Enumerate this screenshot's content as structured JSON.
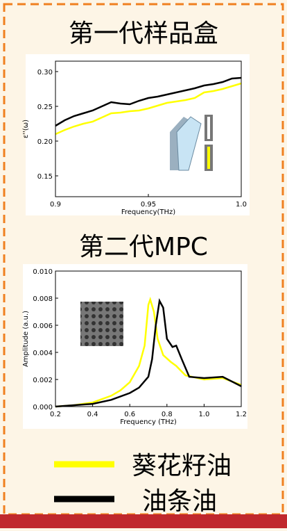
{
  "chart_data": [
    {
      "type": "line",
      "title": "第一代样品盒",
      "x_label": "Frequency(THz)",
      "y_label": "ε''(ω)",
      "xlim": [
        0.9,
        1.0
      ],
      "xticks": [
        0.9,
        0.95,
        {
          "value": 1,
          "label": "1.0"
        }
      ],
      "ylim": [
        0.12,
        0.315
      ],
      "yticks": [
        0.15,
        {
          "value": 0.2,
          "label": "0.20"
        },
        0.25,
        {
          "value": 0.3,
          "label": "0.30"
        }
      ],
      "series": [
        {
          "color": "#ffff00",
          "x": [
            0.9,
            0.905,
            0.91,
            0.915,
            0.92,
            0.925,
            0.93,
            0.935,
            0.94,
            0.945,
            0.95,
            0.955,
            0.96,
            0.965,
            0.97,
            0.975,
            0.98,
            0.985,
            0.99,
            0.995,
            1.0
          ],
          "values": [
            0.21,
            0.216,
            0.221,
            0.225,
            0.228,
            0.234,
            0.24,
            0.241,
            0.243,
            0.244,
            0.247,
            0.251,
            0.255,
            0.257,
            0.259,
            0.262,
            0.27,
            0.272,
            0.275,
            0.279,
            0.283
          ]
        },
        {
          "color": "#000000",
          "x": [
            0.9,
            0.905,
            0.91,
            0.915,
            0.92,
            0.925,
            0.93,
            0.935,
            0.94,
            0.945,
            0.95,
            0.955,
            0.96,
            0.965,
            0.97,
            0.975,
            0.98,
            0.985,
            0.99,
            0.995,
            1.0
          ],
          "values": [
            0.222,
            0.23,
            0.236,
            0.24,
            0.244,
            0.25,
            0.256,
            0.254,
            0.253,
            0.258,
            0.262,
            0.264,
            0.267,
            0.27,
            0.273,
            0.276,
            0.28,
            0.282,
            0.285,
            0.29,
            0.291
          ]
        }
      ]
    },
    {
      "type": "line",
      "title": "第二代MPC",
      "x_label": "Frequency (THz)",
      "y_label": "Amplitude (a.u.)",
      "xlim": [
        0.2,
        1.2
      ],
      "xticks": [
        0.2,
        0.4,
        0.6,
        0.8,
        {
          "value": 1,
          "label": "1.0"
        },
        1.2
      ],
      "ylim": [
        0,
        0.01
      ],
      "yticks": [
        {
          "value": 0,
          "label": "0.000"
        },
        {
          "value": 0.002,
          "label": "0.002"
        },
        {
          "value": 0.004,
          "label": "0.004"
        },
        {
          "value": 0.006,
          "label": "0.006"
        },
        {
          "value": 0.008,
          "label": "0.008"
        },
        {
          "value": 0.01,
          "label": "0.010"
        }
      ],
      "series": [
        {
          "name": "葵花籽油",
          "color": "#ffff00",
          "x": [
            0.2,
            0.3,
            0.4,
            0.5,
            0.55,
            0.6,
            0.65,
            0.68,
            0.7,
            0.71,
            0.73,
            0.75,
            0.78,
            0.82,
            0.85,
            0.9,
            1.0,
            1.1,
            1.2
          ],
          "values": [
            0,
            0.0001,
            0.0003,
            0.0008,
            0.0012,
            0.0018,
            0.003,
            0.0045,
            0.0075,
            0.0079,
            0.007,
            0.005,
            0.0038,
            0.0033,
            0.003,
            0.0023,
            0.002,
            0.0021,
            0.0016
          ]
        },
        {
          "name": "油条油",
          "color": "#000000",
          "x": [
            0.2,
            0.3,
            0.4,
            0.5,
            0.6,
            0.65,
            0.7,
            0.72,
            0.74,
            0.76,
            0.78,
            0.8,
            0.83,
            0.85,
            0.88,
            0.92,
            1.0,
            1.1,
            1.2
          ],
          "values": [
            0,
            0.0001,
            0.0002,
            0.0005,
            0.001,
            0.0014,
            0.0022,
            0.0035,
            0.006,
            0.0078,
            0.0073,
            0.005,
            0.0044,
            0.0045,
            0.0035,
            0.0022,
            0.0021,
            0.0022,
            0.0015
          ]
        }
      ]
    }
  ]
}
